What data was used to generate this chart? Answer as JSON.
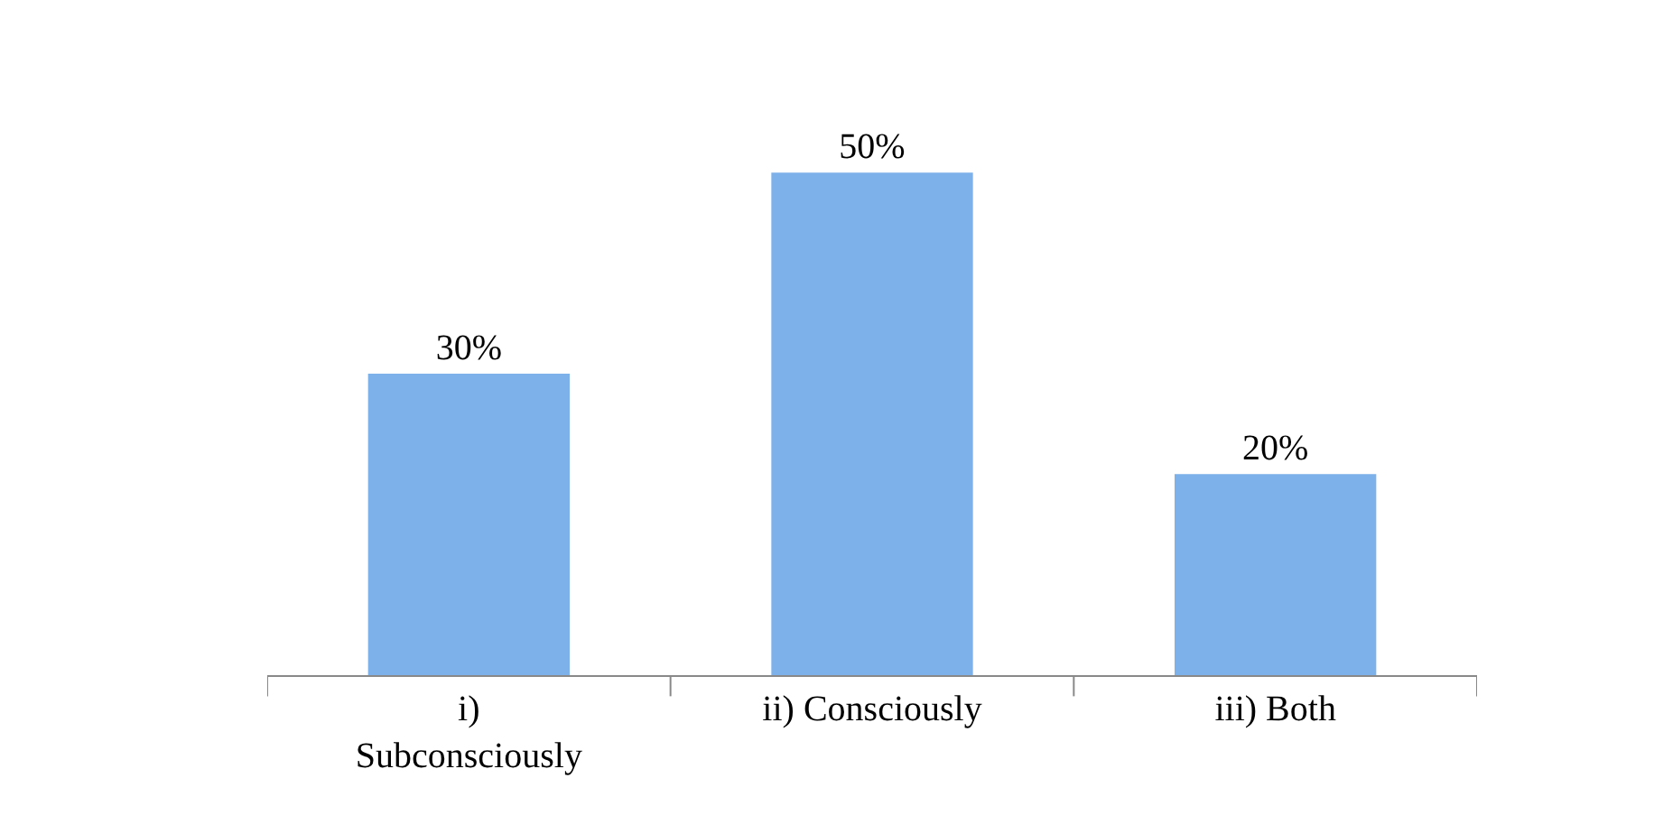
{
  "chart_data": {
    "type": "bar",
    "categories": [
      "i) Subconsciously",
      "ii) Consciously",
      "iii) Both"
    ],
    "values": [
      30,
      50,
      20
    ],
    "value_labels": [
      "30%",
      "50%",
      "20%"
    ],
    "color": "#7db1ea"
  }
}
